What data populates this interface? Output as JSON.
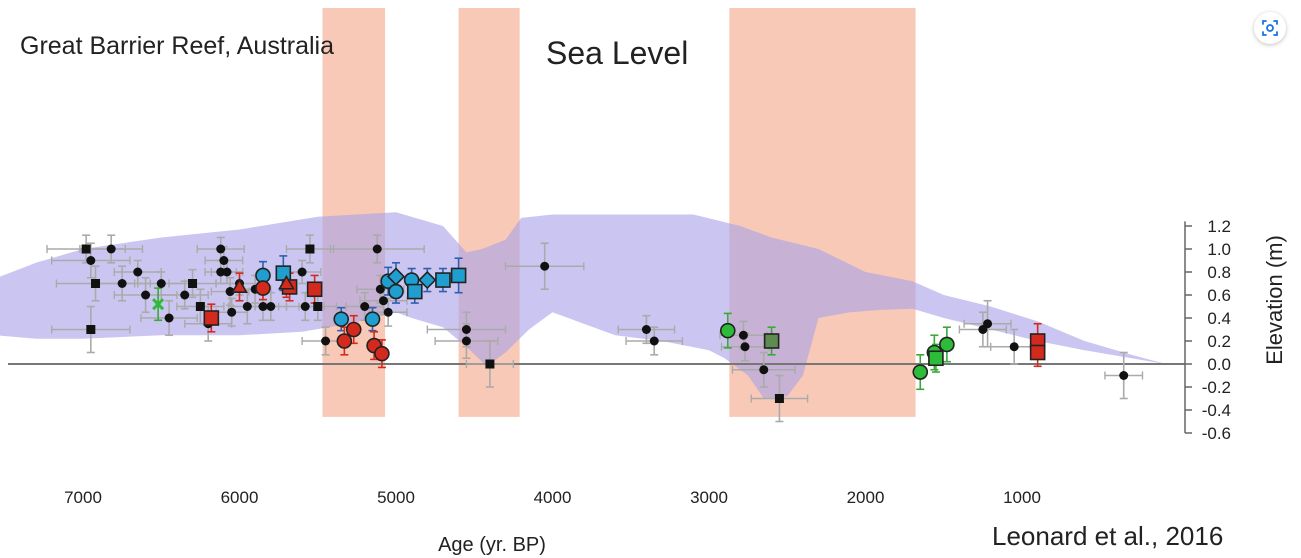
{
  "chart_data": {
    "type": "scatter",
    "title": "Great Barrier Reef, Australia",
    "annotation_title": "Sea Level",
    "credit": "Leonard et al., 2016",
    "xlabel": "Age (yr. BP)",
    "ylabel": "Elevation (m)",
    "x_reversed": true,
    "xlim": [
      7600,
      -50
    ],
    "ylim": [
      -0.6,
      1.3
    ],
    "x_ticks": [
      7000,
      6000,
      5000,
      4000,
      3000,
      2000,
      1000
    ],
    "x_tick_labels": [
      "7000",
      "6000",
      "5000",
      "4000",
      "3000",
      "2000",
      "1000"
    ],
    "y_ticks": [
      1.2,
      1.0,
      0.8,
      0.6,
      0.4,
      0.2,
      0.0,
      -0.2,
      -0.4,
      -0.6
    ],
    "y_tick_labels": [
      "1.2",
      "1.0",
      "0.8",
      "0.6",
      "0.4",
      "0.2",
      "0.0",
      "-0.2",
      "-0.4",
      "-0.6"
    ],
    "colors": {
      "envelope": "#aaa3e8",
      "band": "#f6b79d",
      "black": "#111111",
      "blue": "#1f9fd0",
      "red": "#d42a1e",
      "green": "#2dbb3a",
      "darkgreen": "#5f8a52",
      "error_gray": "#aaaaaa",
      "error_blue": "#2f5fb0",
      "error_red": "#d42a1e",
      "error_green": "#3aa83a"
    },
    "shaded_bands": [
      {
        "from": 5470,
        "to": 5070
      },
      {
        "from": 4600,
        "to": 4210
      },
      {
        "from": 2870,
        "to": 1680
      }
    ],
    "envelope_upper": [
      [
        7550,
        0.75
      ],
      [
        7300,
        0.88
      ],
      [
        7000,
        1.0
      ],
      [
        6500,
        1.1
      ],
      [
        6000,
        1.17
      ],
      [
        5500,
        1.28
      ],
      [
        5000,
        1.32
      ],
      [
        4700,
        1.2
      ],
      [
        4550,
        0.97
      ],
      [
        4450,
        1.0
      ],
      [
        4300,
        1.08
      ],
      [
        4200,
        1.27
      ],
      [
        4000,
        1.3
      ],
      [
        3700,
        1.3
      ],
      [
        3400,
        1.3
      ],
      [
        3100,
        1.3
      ],
      [
        2800,
        1.2
      ],
      [
        2600,
        1.1
      ],
      [
        2300,
        1.0
      ],
      [
        2000,
        0.8
      ],
      [
        1700,
        0.72
      ],
      [
        1500,
        0.6
      ],
      [
        1200,
        0.5
      ],
      [
        900,
        0.37
      ],
      [
        600,
        0.2
      ],
      [
        300,
        0.08
      ],
      [
        80,
        0.0
      ]
    ],
    "envelope_lower": [
      [
        80,
        0.0
      ],
      [
        300,
        0.05
      ],
      [
        600,
        0.12
      ],
      [
        900,
        0.2
      ],
      [
        1200,
        0.3
      ],
      [
        1500,
        0.4
      ],
      [
        1700,
        0.48
      ],
      [
        1900,
        0.47
      ],
      [
        2100,
        0.45
      ],
      [
        2300,
        0.4
      ],
      [
        2400,
        -0.1
      ],
      [
        2500,
        -0.28
      ],
      [
        2650,
        -0.3
      ],
      [
        2750,
        -0.1
      ],
      [
        2900,
        0.05
      ],
      [
        3000,
        0.12
      ],
      [
        3300,
        0.2
      ],
      [
        3600,
        0.25
      ],
      [
        3800,
        0.35
      ],
      [
        4000,
        0.45
      ],
      [
        4150,
        0.3
      ],
      [
        4300,
        0.1
      ],
      [
        4420,
        -0.02
      ],
      [
        4550,
        0.15
      ],
      [
        4700,
        0.32
      ],
      [
        4900,
        0.4
      ],
      [
        5000,
        0.45
      ],
      [
        5300,
        0.35
      ],
      [
        5600,
        0.28
      ],
      [
        6000,
        0.25
      ],
      [
        6500,
        0.25
      ],
      [
        7000,
        0.22
      ],
      [
        7300,
        0.22
      ],
      [
        7550,
        0.25
      ]
    ],
    "series": [
      {
        "marker": "circle",
        "fill": "#111111",
        "error_color": "#aaaaaa",
        "size": "small",
        "points": [
          {
            "x": 6950,
            "y": 0.9,
            "xerr": 250,
            "yerr": 0.15
          },
          {
            "x": 6820,
            "y": 1.0,
            "xerr": 200,
            "yerr": 0.12
          },
          {
            "x": 6750,
            "y": 0.7,
            "xerr": 180,
            "yerr": 0.15
          },
          {
            "x": 6650,
            "y": 0.8,
            "xerr": 150,
            "yerr": 0.1
          },
          {
            "x": 6600,
            "y": 0.6,
            "xerr": 200,
            "yerr": 0.15
          },
          {
            "x": 6500,
            "y": 0.7,
            "xerr": 150,
            "yerr": 0.1
          },
          {
            "x": 6450,
            "y": 0.4,
            "xerr": 180,
            "yerr": 0.15
          },
          {
            "x": 6350,
            "y": 0.6,
            "xerr": 150,
            "yerr": 0.12
          },
          {
            "x": 6200,
            "y": 0.35,
            "xerr": 150,
            "yerr": 0.15
          },
          {
            "x": 6120,
            "y": 1.0,
            "xerr": 150,
            "yerr": 0.1
          },
          {
            "x": 6100,
            "y": 0.9,
            "xerr": 120,
            "yerr": 0.12
          },
          {
            "x": 6120,
            "y": 0.8,
            "xerr": 100,
            "yerr": 0.1
          },
          {
            "x": 6080,
            "y": 0.8,
            "xerr": 100,
            "yerr": 0.1
          },
          {
            "x": 6060,
            "y": 0.63,
            "xerr": 120,
            "yerr": 0.12
          },
          {
            "x": 6050,
            "y": 0.45,
            "xerr": 100,
            "yerr": 0.12
          },
          {
            "x": 6000,
            "y": 0.7,
            "xerr": 150,
            "yerr": 0.1
          },
          {
            "x": 5950,
            "y": 0.5,
            "xerr": 120,
            "yerr": 0.15
          },
          {
            "x": 5900,
            "y": 0.65,
            "xerr": 100,
            "yerr": 0.12
          },
          {
            "x": 5850,
            "y": 0.5,
            "xerr": 100,
            "yerr": 0.12
          },
          {
            "x": 5800,
            "y": 0.5,
            "xerr": 100,
            "yerr": 0.12
          },
          {
            "x": 5600,
            "y": 0.8,
            "xerr": 120,
            "yerr": 0.1
          },
          {
            "x": 5580,
            "y": 0.5,
            "xerr": 120,
            "yerr": 0.12
          },
          {
            "x": 5450,
            "y": 0.2,
            "xerr": 150,
            "yerr": 0.12
          },
          {
            "x": 5200,
            "y": 0.5,
            "xerr": 120,
            "yerr": 0.12
          },
          {
            "x": 5120,
            "y": 1.0,
            "xerr": 300,
            "yerr": 0.12
          },
          {
            "x": 5100,
            "y": 0.65,
            "xerr": 150,
            "yerr": 0.12
          },
          {
            "x": 5080,
            "y": 0.55,
            "xerr": 150,
            "yerr": 0.12
          },
          {
            "x": 5050,
            "y": 0.45,
            "xerr": 120,
            "yerr": 0.12
          },
          {
            "x": 4550,
            "y": 0.3,
            "xerr": 250,
            "yerr": 0.15
          },
          {
            "x": 4550,
            "y": 0.2,
            "xerr": 200,
            "yerr": 0.15
          },
          {
            "x": 4050,
            "y": 0.85,
            "xerr": 250,
            "yerr": 0.2
          },
          {
            "x": 3400,
            "y": 0.3,
            "xerr": 180,
            "yerr": 0.12
          },
          {
            "x": 3350,
            "y": 0.2,
            "xerr": 180,
            "yerr": 0.12
          },
          {
            "x": 2780,
            "y": 0.25,
            "xerr": 150,
            "yerr": 0.12
          },
          {
            "x": 2770,
            "y": 0.15,
            "xerr": 150,
            "yerr": 0.12
          },
          {
            "x": 2650,
            "y": -0.05,
            "xerr": 200,
            "yerr": 0.15
          },
          {
            "x": 1250,
            "y": 0.3,
            "xerr": 150,
            "yerr": 0.15
          },
          {
            "x": 1220,
            "y": 0.35,
            "xerr": 150,
            "yerr": 0.2
          },
          {
            "x": 1050,
            "y": 0.15,
            "xerr": 150,
            "yerr": 0.15
          },
          {
            "x": 350,
            "y": -0.1,
            "xerr": 120,
            "yerr": 0.2
          }
        ]
      },
      {
        "marker": "square",
        "fill": "#111111",
        "error_color": "#aaaaaa",
        "size": "small",
        "points": [
          {
            "x": 6980,
            "y": 1.0,
            "xerr": 250,
            "yerr": 0.12
          },
          {
            "x": 6920,
            "y": 0.7,
            "xerr": 250,
            "yerr": 0.15
          },
          {
            "x": 6950,
            "y": 0.3,
            "xerr": 250,
            "yerr": 0.2
          },
          {
            "x": 6300,
            "y": 0.7,
            "xerr": 150,
            "yerr": 0.12
          },
          {
            "x": 6250,
            "y": 0.5,
            "xerr": 150,
            "yerr": 0.15
          },
          {
            "x": 5550,
            "y": 1.0,
            "xerr": 150,
            "yerr": 0.12
          },
          {
            "x": 5500,
            "y": 0.5,
            "xerr": 120,
            "yerr": 0.12
          },
          {
            "x": 4400,
            "y": 0.0,
            "xerr": 150,
            "yerr": 0.2
          },
          {
            "x": 2550,
            "y": -0.3,
            "xerr": 180,
            "yerr": 0.2
          }
        ]
      },
      {
        "marker": "circle",
        "fill": "#1f9fd0",
        "error_color": "#2f5fb0",
        "size": "large",
        "points": [
          {
            "x": 5850,
            "y": 0.77,
            "xerr": 0,
            "yerr": 0.12
          },
          {
            "x": 5350,
            "y": 0.39,
            "xerr": 0,
            "yerr": 0.1
          },
          {
            "x": 5150,
            "y": 0.39,
            "xerr": 0,
            "yerr": 0.1
          },
          {
            "x": 5050,
            "y": 0.72,
            "xerr": 0,
            "yerr": 0.12
          },
          {
            "x": 5000,
            "y": 0.63,
            "xerr": 0,
            "yerr": 0.1
          },
          {
            "x": 4900,
            "y": 0.73,
            "xerr": 0,
            "yerr": 0.1
          }
        ]
      },
      {
        "marker": "diamond",
        "fill": "#1f9fd0",
        "error_color": "#2f5fb0",
        "size": "large",
        "points": [
          {
            "x": 5000,
            "y": 0.76,
            "xerr": 0,
            "yerr": 0.12
          },
          {
            "x": 4800,
            "y": 0.73,
            "xerr": 0,
            "yerr": 0.1
          }
        ]
      },
      {
        "marker": "square",
        "fill": "#1f9fd0",
        "error_color": "#2f5fb0",
        "size": "large",
        "points": [
          {
            "x": 5720,
            "y": 0.79,
            "xerr": 0,
            "yerr": 0.15
          },
          {
            "x": 4880,
            "y": 0.63,
            "xerr": 0,
            "yerr": 0.1
          },
          {
            "x": 4700,
            "y": 0.73,
            "xerr": 0,
            "yerr": 0.1
          },
          {
            "x": 4600,
            "y": 0.77,
            "xerr": 0,
            "yerr": 0.15
          }
        ]
      },
      {
        "marker": "circle",
        "fill": "#d42a1e",
        "error_color": "#d42a1e",
        "size": "large",
        "points": [
          {
            "x": 5850,
            "y": 0.66,
            "xerr": 0,
            "yerr": 0.1
          },
          {
            "x": 5330,
            "y": 0.2,
            "xerr": 0,
            "yerr": 0.12
          },
          {
            "x": 5270,
            "y": 0.3,
            "xerr": 0,
            "yerr": 0.12
          },
          {
            "x": 5140,
            "y": 0.16,
            "xerr": 0,
            "yerr": 0.12
          },
          {
            "x": 5090,
            "y": 0.09,
            "xerr": 0,
            "yerr": 0.12
          }
        ]
      },
      {
        "marker": "square",
        "fill": "#d42a1e",
        "error_color": "#d42a1e",
        "size": "large",
        "points": [
          {
            "x": 6180,
            "y": 0.4,
            "xerr": 0,
            "yerr": 0.12
          },
          {
            "x": 5680,
            "y": 0.67,
            "xerr": 0,
            "yerr": 0.12
          },
          {
            "x": 5520,
            "y": 0.65,
            "xerr": 0,
            "yerr": 0.12
          },
          {
            "x": 900,
            "y": 0.2,
            "xerr": 0,
            "yerr": 0.15
          },
          {
            "x": 900,
            "y": 0.1,
            "xerr": 0,
            "yerr": 0.12
          }
        ]
      },
      {
        "marker": "triangle",
        "fill": "#d42a1e",
        "error_color": "#d42a1e",
        "size": "large",
        "points": [
          {
            "x": 6000,
            "y": 0.67,
            "xerr": 0,
            "yerr": 0.12
          },
          {
            "x": 5700,
            "y": 0.7,
            "xerr": 0,
            "yerr": 0.12
          }
        ]
      },
      {
        "marker": "x",
        "fill": "#2dbb3a",
        "error_color": "#3aa83a",
        "size": "large",
        "points": [
          {
            "x": 6520,
            "y": 0.52,
            "xerr": 0,
            "yerr": 0.14
          }
        ]
      },
      {
        "marker": "circle",
        "fill": "#2dbb3a",
        "error_color": "#3aa83a",
        "size": "large",
        "points": [
          {
            "x": 2880,
            "y": 0.29,
            "xerr": 0,
            "yerr": 0.15
          },
          {
            "x": 1650,
            "y": -0.07,
            "xerr": 0,
            "yerr": 0.15
          },
          {
            "x": 1560,
            "y": 0.1,
            "xerr": 0,
            "yerr": 0.15
          },
          {
            "x": 1480,
            "y": 0.17,
            "xerr": 0,
            "yerr": 0.15
          }
        ]
      },
      {
        "marker": "square",
        "fill": "#2dbb3a",
        "error_color": "#3aa83a",
        "size": "large",
        "points": [
          {
            "x": 1550,
            "y": 0.05,
            "xerr": 0,
            "yerr": 0.12
          }
        ]
      },
      {
        "marker": "square",
        "fill": "#5f8a52",
        "error_color": "#3aa83a",
        "size": "large",
        "points": [
          {
            "x": 2600,
            "y": 0.2,
            "xerr": 0,
            "yerr": 0.12
          }
        ]
      }
    ]
  }
}
